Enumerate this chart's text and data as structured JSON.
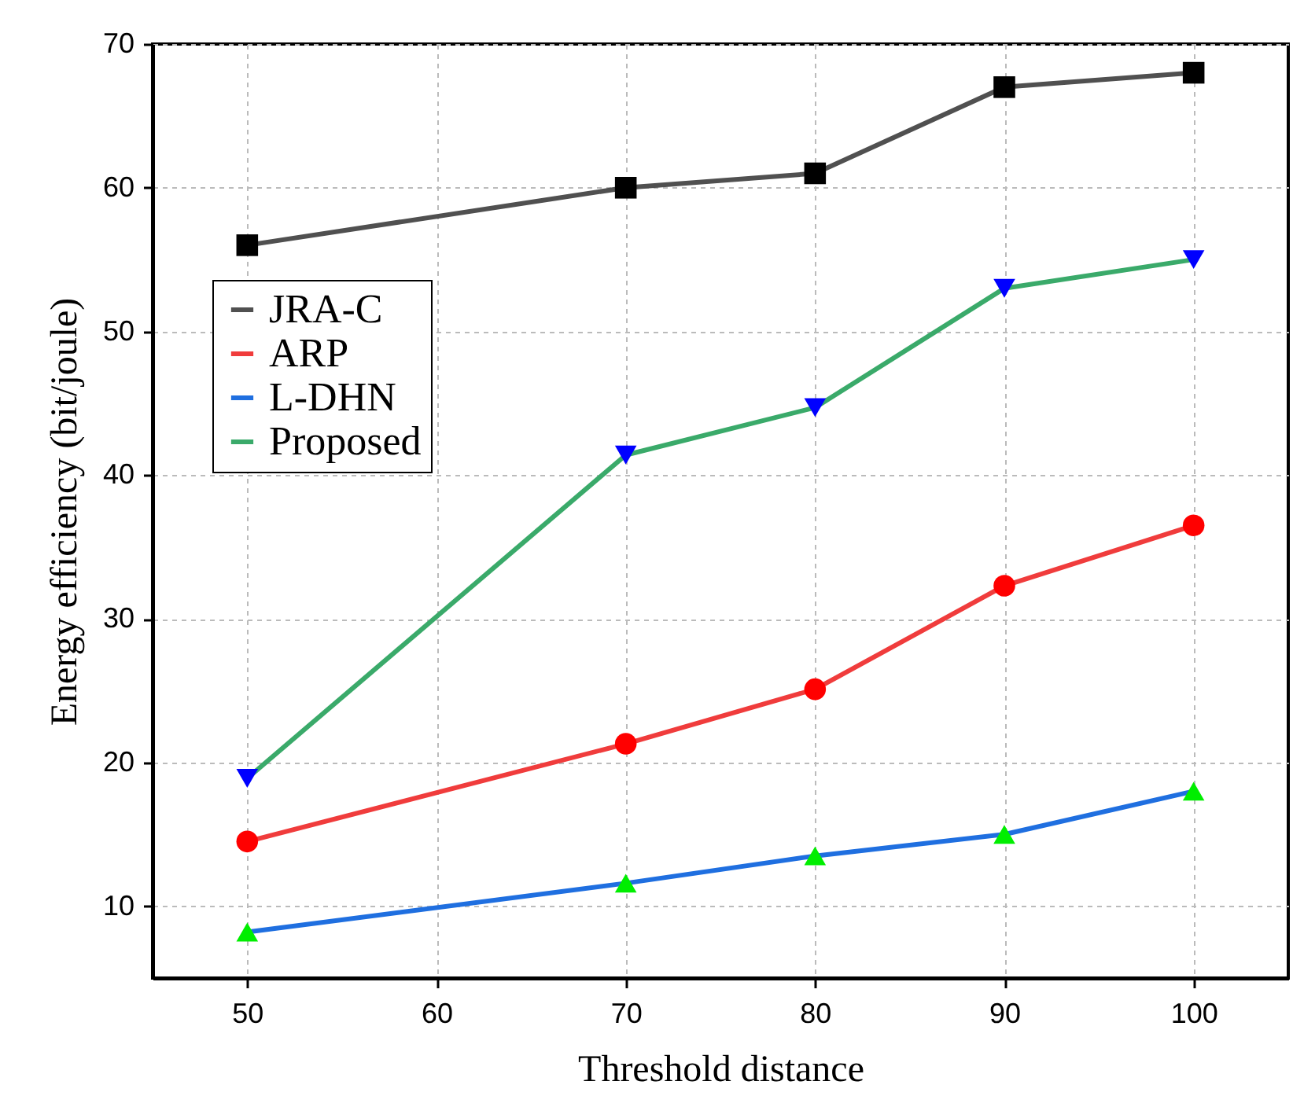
{
  "chart_data": {
    "type": "line",
    "xlabel": "Threshold distance",
    "ylabel": "Energy efficiency (bit/joule)",
    "x": [
      50,
      70,
      80,
      90,
      100
    ],
    "series": [
      {
        "name": "JRA-C",
        "color": "#505050",
        "marker": "square",
        "values": [
          56,
          60,
          61,
          67,
          68
        ]
      },
      {
        "name": "ARP",
        "color": "#f03c3c",
        "marker": "circle",
        "values": [
          14.5,
          21.3,
          25.1,
          32.3,
          36.5
        ]
      },
      {
        "name": "L-DHN",
        "color": "#1f6fe0",
        "marker": "triangle",
        "values": [
          8.2,
          11.6,
          13.5,
          15,
          18
        ]
      },
      {
        "name": "Proposed",
        "color": "#3aaa6a",
        "marker": "triangle-down",
        "values": [
          18.9,
          41.4,
          44.7,
          53,
          55
        ]
      }
    ],
    "xlim": [
      45,
      105
    ],
    "xticks": [
      50,
      60,
      70,
      80,
      90,
      100
    ],
    "ylim": [
      5,
      70
    ],
    "yticks": [
      10,
      20,
      30,
      40,
      50,
      60,
      70
    ],
    "grid": true,
    "legend": "top left",
    "line_style": "solid"
  }
}
